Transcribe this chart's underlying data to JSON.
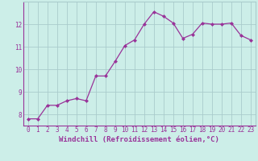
{
  "x": [
    0,
    1,
    2,
    3,
    4,
    5,
    6,
    7,
    8,
    9,
    10,
    11,
    12,
    13,
    14,
    15,
    16,
    17,
    18,
    19,
    20,
    21,
    22,
    23
  ],
  "y": [
    7.8,
    7.8,
    8.4,
    8.4,
    8.6,
    8.7,
    8.6,
    9.7,
    9.7,
    10.35,
    11.05,
    11.3,
    12.0,
    12.55,
    12.35,
    12.05,
    11.37,
    11.55,
    12.05,
    12.0,
    12.0,
    12.05,
    11.5,
    11.3
  ],
  "line_color": "#993399",
  "marker": "D",
  "markersize": 2,
  "linewidth": 0.9,
  "bg_color": "#cceee8",
  "grid_color": "#aacccc",
  "xlabel": "Windchill (Refroidissement éolien,°C)",
  "xlim": [
    -0.5,
    23.5
  ],
  "ylim": [
    7.5,
    13.0
  ],
  "yticks": [
    8,
    9,
    10,
    11,
    12
  ],
  "xticks": [
    0,
    1,
    2,
    3,
    4,
    5,
    6,
    7,
    8,
    9,
    10,
    11,
    12,
    13,
    14,
    15,
    16,
    17,
    18,
    19,
    20,
    21,
    22,
    23
  ],
  "tick_color": "#993399",
  "label_fontsize": 6.5,
  "tick_fontsize": 5.5
}
